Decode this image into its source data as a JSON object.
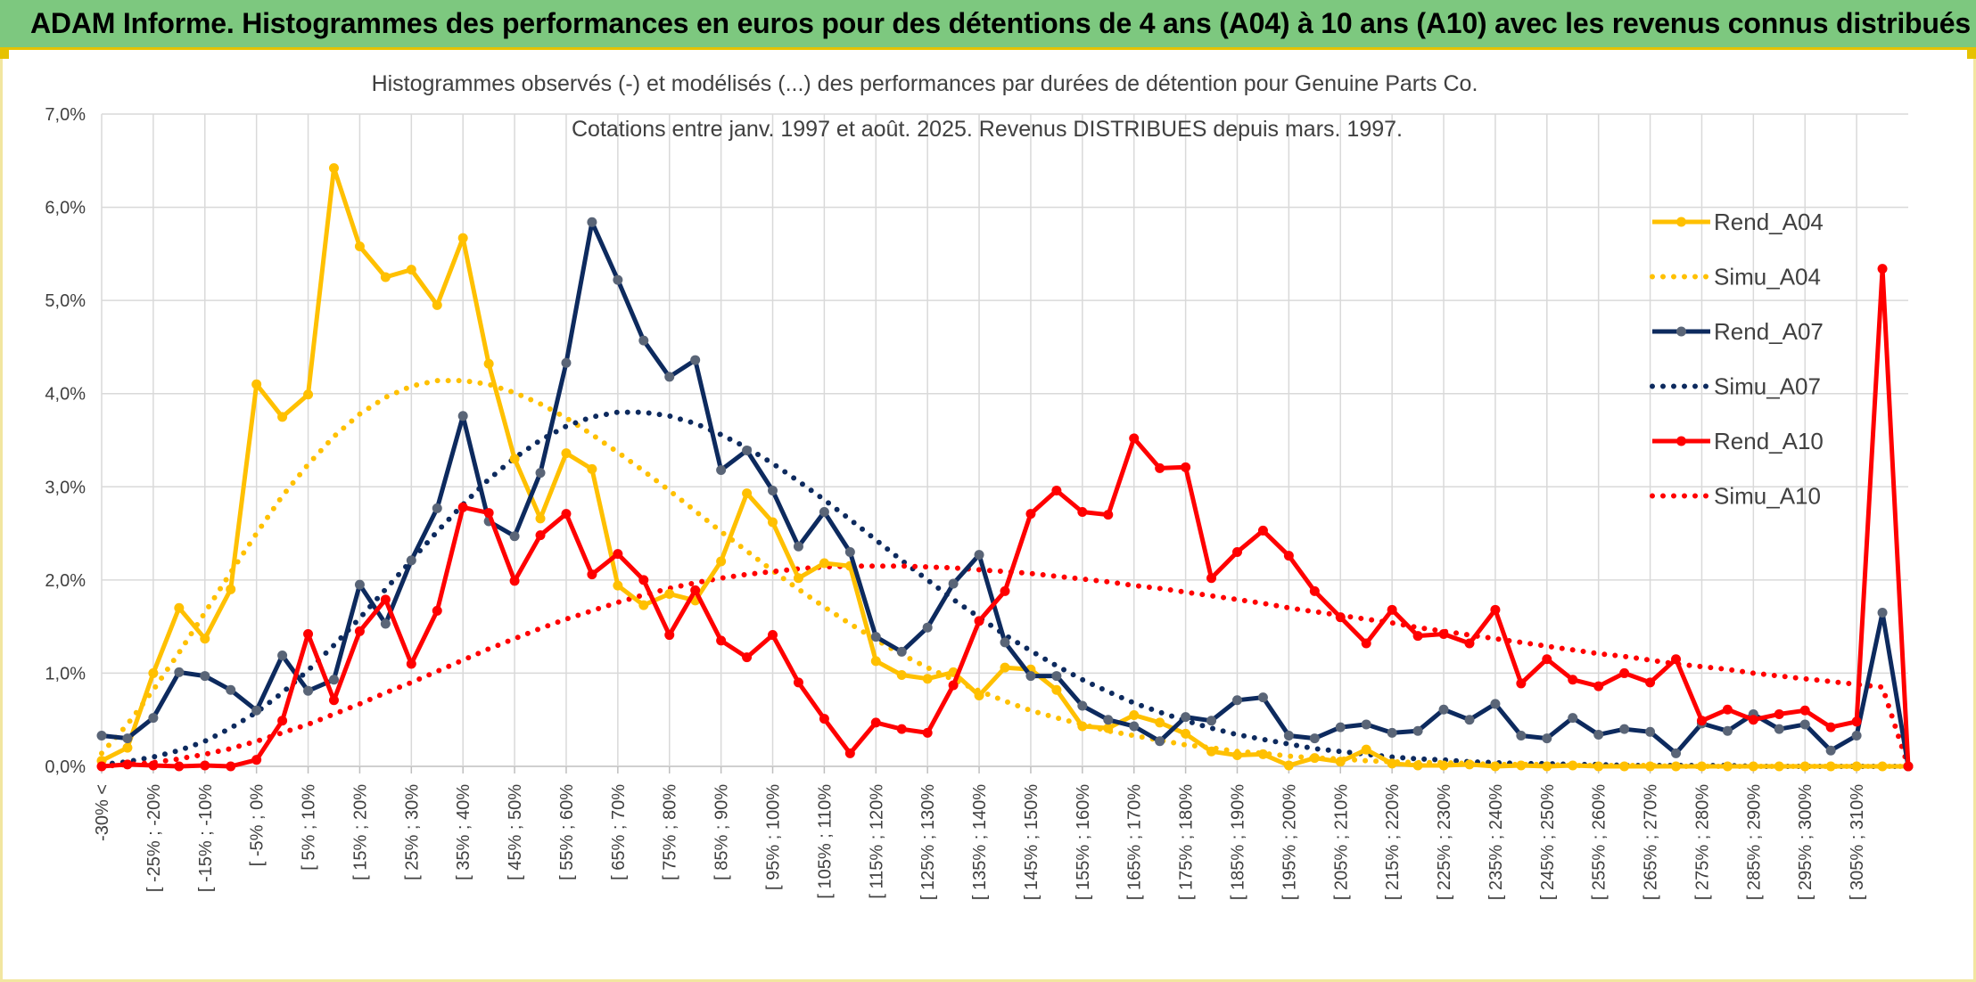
{
  "header": {
    "title": "ADAM Informe. Histogrammes des performances en euros pour des détentions de 4 ans (A04) à 10 ans (A10) avec les revenus connus distribués"
  },
  "chart_data": {
    "type": "line",
    "title_line1": "Histogrammes observés (-) et modélisés (...) des performances par durées de détention pour Genuine Parts Co.",
    "title_line2": "Cotations entre janv. 1997 et août. 2025. Revenus DISTRIBUES depuis mars. 1997.",
    "y_ticks": [
      "0,0%",
      "1,0%",
      "2,0%",
      "3,0%",
      "4,0%",
      "5,0%",
      "6,0%",
      "7,0%"
    ],
    "ylim": [
      0,
      7
    ],
    "grid": true,
    "legend_position": "right",
    "categories_labeled": [
      "-30% <",
      "[ -25% ; -20%",
      "[ -15% ; -10%",
      "[ -5% ; 0%",
      "[ 5% ; 10%",
      "[ 15% ; 20%",
      "[ 25% ; 30%",
      "[ 35% ; 40%",
      "[ 45% ; 50%",
      "[ 55% ; 60%",
      "[ 65% ; 70%",
      "[ 75% ; 80%",
      "[ 85% ; 90%",
      "[ 95% ; 100%",
      "[ 105% ; 110%",
      "[ 115% ; 120%",
      "[ 125% ; 130%",
      "[ 135% ; 140%",
      "[ 145% ; 150%",
      "[ 155% ; 160%",
      "[ 165% ; 170%",
      "[ 175% ; 180%",
      "[ 185% ; 190%",
      "[ 195% ; 200%",
      "[ 205% ; 210%",
      "[ 215% ; 220%",
      "[ 225% ; 230%",
      "[ 235% ; 240%",
      "[ 245% ; 250%",
      "[ 255% ; 260%",
      "[ 265% ; 270%",
      "[ 275% ; 280%",
      "[ 285% ; 290%",
      "[ 295% ; 300%",
      "[ 305% ; 310%"
    ],
    "series": [
      {
        "name": "Rend_A04",
        "color": "#ffc000",
        "style": "solid",
        "values": [
          0.06,
          0.2,
          1.0,
          1.7,
          1.37,
          1.9,
          4.1,
          3.75,
          3.99,
          6.42,
          5.58,
          5.25,
          5.33,
          4.95,
          5.67,
          4.32,
          3.3,
          2.66,
          3.36,
          3.19,
          1.94,
          1.73,
          1.85,
          1.78,
          2.2,
          2.93,
          2.62,
          2.02,
          2.18,
          2.15,
          1.13,
          0.98,
          0.94,
          1.01,
          0.76,
          1.06,
          1.04,
          0.82,
          0.43,
          0.41,
          0.55,
          0.47,
          0.35,
          0.16,
          0.12,
          0.13,
          0.01,
          0.09,
          0.05,
          0.18,
          0.03,
          0.01,
          0.01,
          0.02,
          0.0,
          0.01,
          0.0,
          0.01,
          0.0,
          0.0,
          0.0,
          0.0,
          0.0,
          0.0,
          0.0,
          0.0,
          0.0,
          0.0,
          0.0,
          0.0,
          0.0
        ]
      },
      {
        "name": "Simu_A04",
        "color": "#ffc000",
        "style": "dotted",
        "values": [
          0.14,
          0.45,
          0.82,
          1.22,
          1.65,
          2.08,
          2.5,
          2.9,
          3.24,
          3.54,
          3.78,
          3.96,
          4.08,
          4.14,
          4.14,
          4.1,
          4.01,
          3.89,
          3.74,
          3.56,
          3.37,
          3.17,
          2.96,
          2.74,
          2.52,
          2.31,
          2.1,
          1.9,
          1.71,
          1.53,
          1.36,
          1.2,
          1.06,
          0.93,
          0.81,
          0.7,
          0.6,
          0.52,
          0.45,
          0.38,
          0.33,
          0.28,
          0.23,
          0.2,
          0.16,
          0.14,
          0.11,
          0.09,
          0.08,
          0.06,
          0.05,
          0.04,
          0.04,
          0.03,
          0.02,
          0.02,
          0.02,
          0.01,
          0.01,
          0.01,
          0.01,
          0.0,
          0.0,
          0.0,
          0.0,
          0.0,
          0.0,
          0.0,
          0.0,
          0.0,
          0.0
        ]
      },
      {
        "name": "Rend_A07",
        "color": "#0d2a5e",
        "style": "solid",
        "values": [
          0.33,
          0.3,
          0.52,
          1.01,
          0.97,
          0.82,
          0.6,
          1.19,
          0.81,
          0.93,
          1.95,
          1.53,
          2.21,
          2.77,
          3.76,
          2.63,
          2.47,
          3.15,
          4.33,
          5.84,
          5.22,
          4.57,
          4.18,
          4.36,
          3.18,
          3.39,
          2.96,
          2.36,
          2.73,
          2.3,
          1.39,
          1.23,
          1.49,
          1.96,
          2.27,
          1.33,
          0.97,
          0.97,
          0.65,
          0.5,
          0.43,
          0.27,
          0.53,
          0.49,
          0.71,
          0.74,
          0.33,
          0.3,
          0.42,
          0.45,
          0.36,
          0.38,
          0.61,
          0.5,
          0.67,
          0.33,
          0.3,
          0.52,
          0.34,
          0.4,
          0.37,
          0.14,
          0.46,
          0.38,
          0.56,
          0.4,
          0.45,
          0.17,
          0.33,
          1.65,
          0.0
        ]
      },
      {
        "name": "Simu_A07",
        "color": "#0d2a5e",
        "style": "dotted",
        "values": [
          0.02,
          0.05,
          0.1,
          0.17,
          0.27,
          0.41,
          0.58,
          0.79,
          1.03,
          1.3,
          1.59,
          1.9,
          2.21,
          2.52,
          2.81,
          3.08,
          3.31,
          3.5,
          3.65,
          3.75,
          3.8,
          3.8,
          3.76,
          3.68,
          3.56,
          3.42,
          3.25,
          3.06,
          2.86,
          2.65,
          2.43,
          2.21,
          2.0,
          1.79,
          1.6,
          1.41,
          1.24,
          1.08,
          0.93,
          0.8,
          0.68,
          0.58,
          0.49,
          0.41,
          0.34,
          0.29,
          0.24,
          0.19,
          0.16,
          0.13,
          0.1,
          0.08,
          0.07,
          0.05,
          0.04,
          0.03,
          0.03,
          0.02,
          0.02,
          0.01,
          0.01,
          0.01,
          0.01,
          0.01,
          0.0,
          0.0,
          0.0,
          0.0,
          0.0,
          0.0,
          0.0
        ]
      },
      {
        "name": "Rend_A10",
        "color": "#ff0000",
        "style": "solid",
        "values": [
          0.0,
          0.02,
          0.01,
          0.0,
          0.01,
          0.0,
          0.07,
          0.49,
          1.42,
          0.71,
          1.45,
          1.79,
          1.1,
          1.67,
          2.78,
          2.72,
          1.99,
          2.48,
          2.71,
          2.06,
          2.28,
          2.0,
          1.41,
          1.89,
          1.35,
          1.17,
          1.41,
          0.9,
          0.51,
          0.14,
          0.47,
          0.4,
          0.36,
          0.87,
          1.56,
          1.88,
          2.71,
          2.96,
          2.73,
          2.7,
          3.52,
          3.2,
          3.21,
          2.02,
          2.3,
          2.53,
          2.26,
          1.88,
          1.6,
          1.32,
          1.68,
          1.4,
          1.42,
          1.32,
          1.68,
          0.89,
          1.15,
          0.93,
          0.86,
          1.0,
          0.9,
          1.15,
          0.49,
          0.61,
          0.5,
          0.56,
          0.6,
          0.42,
          0.48,
          5.34,
          0.0
        ]
      },
      {
        "name": "Simu_A10",
        "color": "#ff0000",
        "style": "dotted",
        "values": [
          0.0,
          0.02,
          0.04,
          0.08,
          0.13,
          0.19,
          0.27,
          0.36,
          0.45,
          0.56,
          0.67,
          0.79,
          0.9,
          1.02,
          1.14,
          1.26,
          1.37,
          1.48,
          1.58,
          1.67,
          1.76,
          1.84,
          1.91,
          1.97,
          2.02,
          2.06,
          2.09,
          2.12,
          2.14,
          2.15,
          2.15,
          2.15,
          2.14,
          2.13,
          2.11,
          2.09,
          2.07,
          2.04,
          2.01,
          1.98,
          1.94,
          1.91,
          1.87,
          1.83,
          1.79,
          1.75,
          1.7,
          1.66,
          1.62,
          1.58,
          1.54,
          1.49,
          1.45,
          1.41,
          1.37,
          1.33,
          1.29,
          1.25,
          1.21,
          1.18,
          1.14,
          1.1,
          1.07,
          1.04,
          1.0,
          0.97,
          0.94,
          0.91,
          0.88,
          0.85,
          0.0
        ]
      }
    ]
  }
}
